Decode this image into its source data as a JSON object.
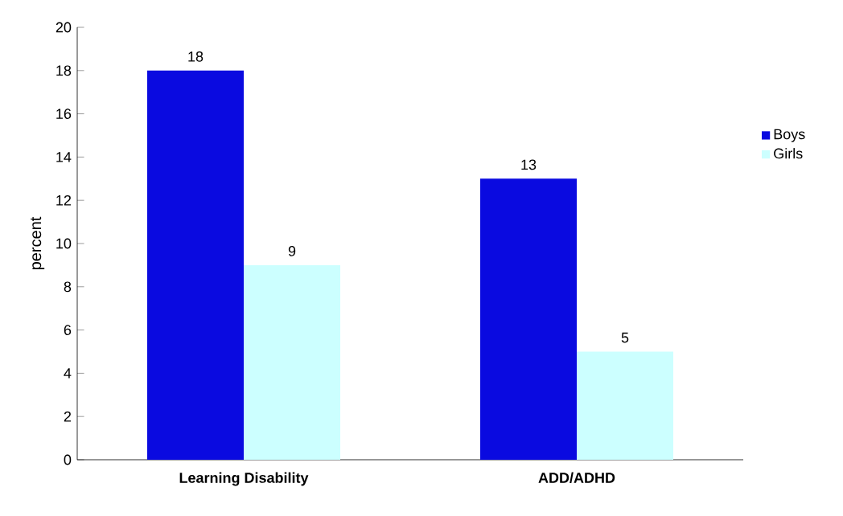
{
  "chart_data": {
    "type": "bar",
    "categories": [
      "Learning Disability",
      "ADD/ADHD"
    ],
    "series": [
      {
        "name": "Boys",
        "color": "#0a0ae0",
        "values": [
          18,
          13
        ]
      },
      {
        "name": "Girls",
        "color": "#ccffff",
        "values": [
          9,
          5
        ]
      }
    ],
    "ylabel": "percent",
    "ylim": [
      0,
      20
    ],
    "yticks": [
      0,
      2,
      4,
      6,
      8,
      10,
      12,
      14,
      16,
      18,
      20
    ],
    "data_labels": true,
    "legend": "right",
    "grid": false
  }
}
